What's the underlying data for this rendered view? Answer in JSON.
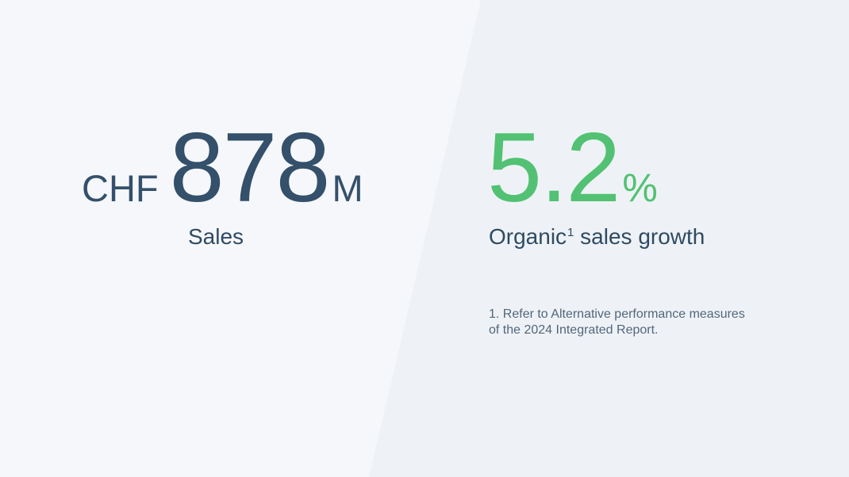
{
  "kpis": {
    "sales": {
      "prefix": "CHF",
      "value": "878",
      "suffix": "M",
      "label": "Sales"
    },
    "growth": {
      "value": "5.2",
      "suffix": "%",
      "label": "Organic",
      "footnote_marker": "1",
      "label_rest": " sales growth"
    }
  },
  "footnote": {
    "line1": "1. Refer to Alternative performance measures",
    "line2": "of the 2024 Integrated Report."
  },
  "colors": {
    "primary": "#34506a",
    "accent_green": "#52c173",
    "left_bg": "#f5f7fb",
    "right_bg": "#eef2f6"
  }
}
